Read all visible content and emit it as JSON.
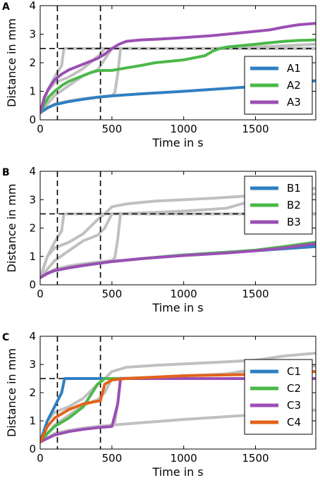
{
  "colors": {
    "gray": "#c0c0c0",
    "blue": "#2f7fc1",
    "green": "#4bb849",
    "purple": "#9b4fb4",
    "orange": "#e3631a"
  },
  "chart_data": [
    {
      "panel": "A",
      "type": "line",
      "xlabel": "Time in s",
      "ylabel": "Distance in mm",
      "xlim": [
        0,
        1920
      ],
      "ylim": [
        0,
        4
      ],
      "xticks": [
        0,
        500,
        1000,
        1500
      ],
      "yticks": [
        0,
        1,
        2,
        3,
        4
      ],
      "grid": false,
      "legend_placement": "right",
      "reference_lines": {
        "horizontal_y": 2.5,
        "vertical_x": [
          120,
          420
        ],
        "style": "dashed"
      },
      "background": [
        {
          "x": [
            0,
            50,
            100,
            150,
            165,
            200,
            300,
            400,
            500,
            540,
            600,
            800,
            1000,
            1500,
            1920
          ],
          "y": [
            0.25,
            1.0,
            1.5,
            1.9,
            2.5,
            2.5,
            2.5,
            2.5,
            2.5,
            2.5,
            2.5,
            2.5,
            2.5,
            2.5,
            2.5
          ]
        },
        {
          "x": [
            0,
            100,
            200,
            300,
            400,
            500,
            520,
            540,
            560,
            600,
            1000,
            1500,
            1920
          ],
          "y": [
            0.25,
            0.55,
            0.66,
            0.74,
            0.8,
            0.85,
            0.95,
            1.6,
            2.5,
            2.5,
            2.5,
            2.5,
            2.5
          ]
        },
        {
          "x": [
            0,
            50,
            100,
            200,
            300,
            420,
            450,
            500,
            600,
            800,
            1000,
            1200,
            1500,
            1920
          ],
          "y": [
            0.25,
            1.0,
            1.3,
            1.5,
            1.8,
            2.3,
            2.5,
            2.5,
            2.5,
            2.5,
            2.5,
            2.5,
            2.5,
            2.5
          ]
        },
        {
          "x": [
            0,
            100,
            200,
            300,
            400,
            500,
            800,
            1000,
            1100,
            1200,
            1300,
            1500,
            1920
          ],
          "y": [
            0.25,
            0.85,
            1.2,
            1.55,
            1.75,
            2.5,
            2.5,
            2.5,
            2.5,
            2.5,
            2.5,
            2.55,
            2.65
          ]
        }
      ],
      "series": [
        {
          "name": "A1",
          "color": "#2f7fc1",
          "x": [
            0,
            50,
            100,
            200,
            300,
            400,
            500,
            700,
            1000,
            1300,
            1500,
            1700,
            1920
          ],
          "y": [
            0.25,
            0.42,
            0.53,
            0.64,
            0.72,
            0.79,
            0.84,
            0.91,
            1.0,
            1.1,
            1.17,
            1.25,
            1.37
          ]
        },
        {
          "name": "A2",
          "color": "#4bb849",
          "x": [
            0,
            30,
            60,
            100,
            150,
            200,
            250,
            300,
            350,
            400,
            450,
            500,
            600,
            700,
            800,
            900,
            1000,
            1100,
            1150,
            1200,
            1250,
            1300,
            1400,
            1500,
            1600,
            1700,
            1800,
            1920
          ],
          "y": [
            0.25,
            0.55,
            0.8,
            1.0,
            1.2,
            1.35,
            1.45,
            1.55,
            1.65,
            1.72,
            1.73,
            1.73,
            1.82,
            1.9,
            2.0,
            2.05,
            2.1,
            2.2,
            2.25,
            2.4,
            2.5,
            2.55,
            2.6,
            2.65,
            2.7,
            2.75,
            2.78,
            2.8
          ]
        },
        {
          "name": "A3",
          "color": "#9b4fb4",
          "x": [
            0,
            30,
            60,
            100,
            150,
            200,
            300,
            400,
            450,
            500,
            550,
            600,
            700,
            800,
            1000,
            1200,
            1400,
            1600,
            1700,
            1800,
            1920
          ],
          "y": [
            0.25,
            0.8,
            1.1,
            1.4,
            1.6,
            1.75,
            1.95,
            2.15,
            2.3,
            2.5,
            2.65,
            2.75,
            2.8,
            2.82,
            2.88,
            2.95,
            3.05,
            3.15,
            3.25,
            3.33,
            3.38
          ]
        }
      ],
      "legend": [
        {
          "label": "A1",
          "color": "#2f7fc1"
        },
        {
          "label": "A2",
          "color": "#4bb849"
        },
        {
          "label": "A3",
          "color": "#9b4fb4"
        }
      ]
    },
    {
      "panel": "B",
      "type": "line",
      "xlabel": "Time in s",
      "ylabel": "Distance in mm",
      "xlim": [
        0,
        1920
      ],
      "ylim": [
        0,
        4
      ],
      "xticks": [
        0,
        500,
        1000,
        1500
      ],
      "yticks": [
        0,
        1,
        2,
        3,
        4
      ],
      "grid": false,
      "legend_placement": "top-right",
      "reference_lines": {
        "horizontal_y": 2.5,
        "vertical_x": [
          120,
          420
        ],
        "style": "dashed"
      },
      "background": [
        {
          "x": [
            0,
            50,
            100,
            150,
            165,
            200,
            500,
            1000,
            1500,
            1920
          ],
          "y": [
            0.25,
            1.0,
            1.5,
            1.9,
            2.5,
            2.5,
            2.5,
            2.5,
            2.5,
            2.5
          ]
        },
        {
          "x": [
            0,
            100,
            200,
            300,
            400,
            500,
            520,
            540,
            560,
            600,
            1000,
            1500,
            1920
          ],
          "y": [
            0.25,
            0.55,
            0.66,
            0.74,
            0.8,
            0.85,
            0.95,
            1.6,
            2.5,
            2.5,
            2.5,
            2.5,
            2.5
          ]
        },
        {
          "x": [
            0,
            50,
            100,
            200,
            300,
            400,
            450,
            500,
            600,
            800,
            1000,
            1200,
            1500,
            1700,
            1920
          ],
          "y": [
            0.25,
            1.0,
            1.3,
            1.5,
            1.8,
            2.3,
            2.5,
            2.75,
            2.85,
            2.95,
            3.0,
            3.05,
            3.15,
            3.3,
            3.4
          ]
        },
        {
          "x": [
            0,
            100,
            200,
            300,
            400,
            450,
            500,
            800,
            1000,
            1100,
            1200,
            1300,
            1400,
            1500,
            1700,
            1920
          ],
          "y": [
            0.25,
            0.85,
            1.2,
            1.55,
            1.75,
            2.0,
            2.5,
            2.55,
            2.6,
            2.63,
            2.66,
            2.7,
            2.85,
            2.95,
            3.1,
            3.2
          ]
        }
      ],
      "series": [
        {
          "name": "B1",
          "color": "#2f7fc1",
          "x": [
            0,
            50,
            100,
            200,
            300,
            400,
            500,
            700,
            1000,
            1300,
            1500,
            1700,
            1920
          ],
          "y": [
            0.25,
            0.4,
            0.5,
            0.6,
            0.68,
            0.75,
            0.82,
            0.92,
            1.05,
            1.15,
            1.2,
            1.27,
            1.35
          ]
        },
        {
          "name": "B2",
          "color": "#4bb849",
          "x": [
            0,
            50,
            100,
            200,
            300,
            400,
            500,
            700,
            1000,
            1300,
            1500,
            1700,
            1920
          ],
          "y": [
            0.25,
            0.4,
            0.5,
            0.6,
            0.68,
            0.75,
            0.82,
            0.92,
            1.05,
            1.15,
            1.22,
            1.35,
            1.5
          ]
        },
        {
          "name": "B3",
          "color": "#9b4fb4",
          "x": [
            0,
            50,
            100,
            200,
            300,
            400,
            500,
            700,
            1000,
            1300,
            1500,
            1700,
            1920
          ],
          "y": [
            0.25,
            0.4,
            0.5,
            0.6,
            0.68,
            0.75,
            0.82,
            0.92,
            1.03,
            1.12,
            1.2,
            1.3,
            1.45
          ]
        }
      ],
      "legend": [
        {
          "label": "B1",
          "color": "#2f7fc1"
        },
        {
          "label": "B2",
          "color": "#4bb849"
        },
        {
          "label": "B3",
          "color": "#9b4fb4"
        }
      ]
    },
    {
      "panel": "C",
      "type": "line",
      "xlabel": "Time in s",
      "ylabel": "Distance in mm",
      "xlim": [
        0,
        1920
      ],
      "ylim": [
        0,
        4
      ],
      "xticks": [
        0,
        500,
        1000,
        1500
      ],
      "yticks": [
        0,
        1,
        2,
        3,
        4
      ],
      "grid": false,
      "legend_placement": "right",
      "reference_lines": {
        "horizontal_y": 2.5,
        "vertical_x": [
          120,
          420
        ],
        "style": "dashed"
      },
      "background": [
        {
          "x": [
            0,
            100,
            200,
            300,
            400,
            500,
            700,
            1000,
            1300,
            1500,
            1700,
            1920
          ],
          "y": [
            0.25,
            0.55,
            0.66,
            0.74,
            0.8,
            0.85,
            0.93,
            1.05,
            1.15,
            1.22,
            1.3,
            1.38
          ]
        },
        {
          "x": [
            0,
            100,
            200,
            300,
            400,
            500,
            520,
            540,
            560,
            600,
            1000,
            1500,
            1920
          ],
          "y": [
            0.25,
            0.55,
            0.66,
            0.74,
            0.8,
            0.85,
            0.95,
            1.6,
            2.5,
            2.5,
            2.5,
            2.5,
            2.5
          ]
        },
        {
          "x": [
            0,
            50,
            100,
            200,
            300,
            400,
            450,
            500,
            600,
            800,
            1000,
            1200,
            1500,
            1700,
            1920
          ],
          "y": [
            0.25,
            1.0,
            1.3,
            1.5,
            1.8,
            2.3,
            2.5,
            2.75,
            2.9,
            2.97,
            3.02,
            3.07,
            3.15,
            3.3,
            3.4
          ]
        },
        {
          "x": [
            0,
            100,
            200,
            300,
            400,
            450,
            500,
            800,
            1000,
            1100,
            1200,
            1300,
            1400,
            1500,
            1700,
            1920
          ],
          "y": [
            0.25,
            0.85,
            1.2,
            1.55,
            1.75,
            2.0,
            2.5,
            2.55,
            2.6,
            2.62,
            2.64,
            2.67,
            2.75,
            2.8,
            2.85,
            2.95
          ]
        }
      ],
      "series": [
        {
          "name": "C1",
          "color": "#2f7fc1",
          "x": [
            0,
            50,
            100,
            150,
            170,
            200,
            500,
            1000,
            1500,
            1920
          ],
          "y": [
            0.25,
            1.0,
            1.5,
            2.0,
            2.5,
            2.5,
            2.5,
            2.5,
            2.5,
            2.5
          ]
        },
        {
          "name": "C2",
          "color": "#4bb849",
          "x": [
            0,
            50,
            100,
            200,
            300,
            400,
            450,
            500,
            1000,
            1500,
            1920
          ],
          "y": [
            0.25,
            0.55,
            0.8,
            1.1,
            1.5,
            2.3,
            2.5,
            2.5,
            2.5,
            2.5,
            2.5
          ]
        },
        {
          "name": "C3",
          "color": "#9b4fb4",
          "x": [
            0,
            100,
            200,
            300,
            400,
            500,
            540,
            560,
            600,
            1000,
            1500,
            1920
          ],
          "y": [
            0.25,
            0.5,
            0.62,
            0.7,
            0.76,
            0.8,
            1.6,
            2.5,
            2.5,
            2.5,
            2.5,
            2.5
          ]
        },
        {
          "name": "C4",
          "color": "#e3631a",
          "x": [
            0,
            50,
            100,
            200,
            300,
            400,
            420,
            450,
            500,
            600,
            800,
            1000,
            1200,
            1500,
            1700,
            1920
          ],
          "y": [
            0.25,
            0.8,
            1.1,
            1.4,
            1.6,
            1.7,
            1.72,
            2.3,
            2.45,
            2.5,
            2.55,
            2.6,
            2.62,
            2.65,
            2.7,
            2.75
          ]
        }
      ],
      "legend": [
        {
          "label": "C1",
          "color": "#2f7fc1"
        },
        {
          "label": "C2",
          "color": "#4bb849"
        },
        {
          "label": "C3",
          "color": "#9b4fb4"
        },
        {
          "label": "C4",
          "color": "#e3631a"
        }
      ]
    }
  ]
}
